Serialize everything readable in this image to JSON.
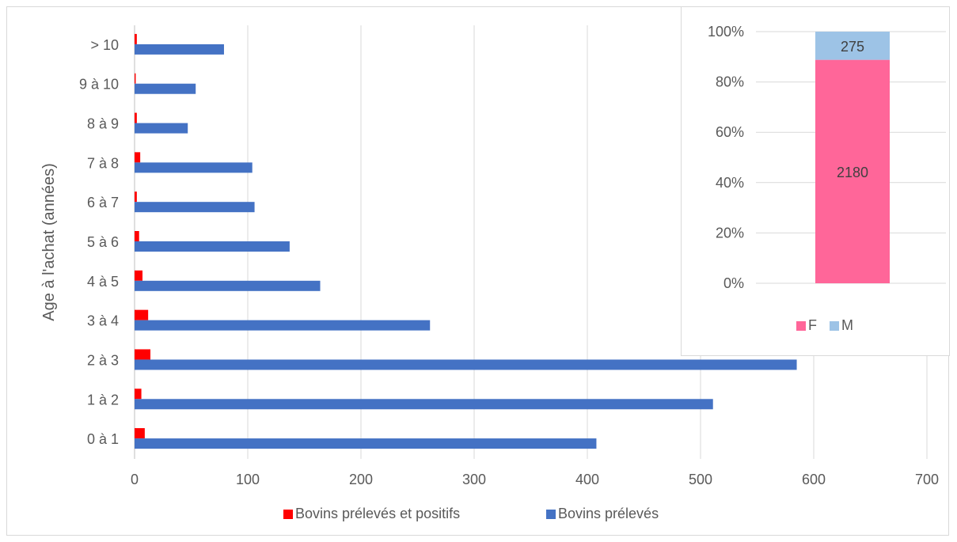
{
  "chart_data": [
    {
      "type": "bar",
      "orientation": "horizontal",
      "title": "",
      "xlabel": "",
      "ylabel": "Age à l'achat (années)",
      "categories": [
        "0 à 1",
        "1 à 2",
        "2 à 3",
        "3 à 4",
        "4 à 5",
        "5 à 6",
        "6 à 7",
        "7 à 8",
        "8 à 9",
        "9 à 10",
        "> 10"
      ],
      "series": [
        {
          "name": "Bovins prélevés",
          "color": "#4472c4",
          "values": [
            408,
            511,
            585,
            261,
            164,
            137,
            106,
            104,
            47,
            54,
            79
          ]
        },
        {
          "name": "Bovins prélevés et positifs",
          "color": "#ff0000",
          "values": [
            9,
            6,
            14,
            12,
            7,
            4,
            2,
            5,
            2,
            1,
            2
          ]
        }
      ],
      "xlim": [
        0,
        700
      ],
      "xticks": [
        "0",
        "100",
        "200",
        "300",
        "400",
        "500",
        "600",
        "700"
      ],
      "grid": true,
      "legend": {
        "position": "bottom",
        "entries": [
          "Bovins prélevés et positifs",
          "Bovins prélevés"
        ]
      }
    },
    {
      "type": "bar",
      "stacked": "percent",
      "title": "",
      "categories": [
        ""
      ],
      "series": [
        {
          "name": "F",
          "color": "#ff6699",
          "values": [
            2180
          ]
        },
        {
          "name": "M",
          "color": "#9dc3e6",
          "values": [
            275
          ]
        }
      ],
      "data_labels": [
        "2180",
        "275"
      ],
      "ylim": [
        0,
        100
      ],
      "yticks": [
        "0%",
        "20%",
        "40%",
        "60%",
        "80%",
        "100%"
      ],
      "grid": true,
      "legend": {
        "position": "bottom",
        "entries": [
          "F",
          "M"
        ]
      }
    }
  ]
}
